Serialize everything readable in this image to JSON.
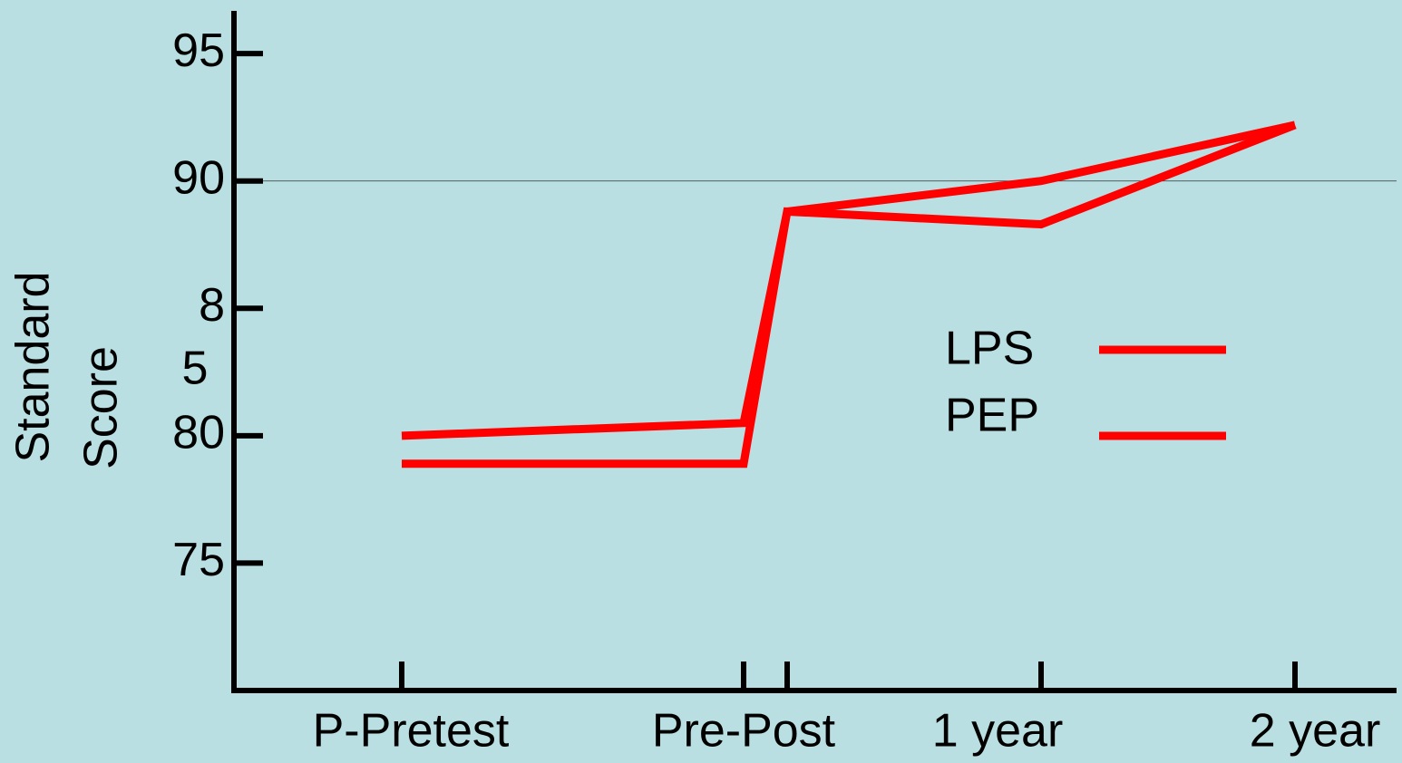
{
  "chart_data": {
    "type": "line",
    "ylabel_lines": [
      "Standard",
      "Score"
    ],
    "categories": [
      "P-Pretest",
      "Pre-Post",
      null,
      "1 year",
      "2 year"
    ],
    "series": [
      {
        "name": "LPS",
        "color": "#ff0000",
        "values": [
          80,
          80.5,
          88.8,
          90,
          92.2
        ]
      },
      {
        "name": "PEP",
        "color": "#ff0000",
        "values": [
          78.9,
          78.9,
          88.8,
          88.3,
          92.2
        ]
      }
    ],
    "ylim": [
      70,
      96.5
    ],
    "yticks": [
      95,
      90,
      {
        "value": 85,
        "label": "8"
      },
      80,
      75
    ],
    "annotations": [
      "5"
    ],
    "reference_line": 90,
    "legend": "right"
  }
}
